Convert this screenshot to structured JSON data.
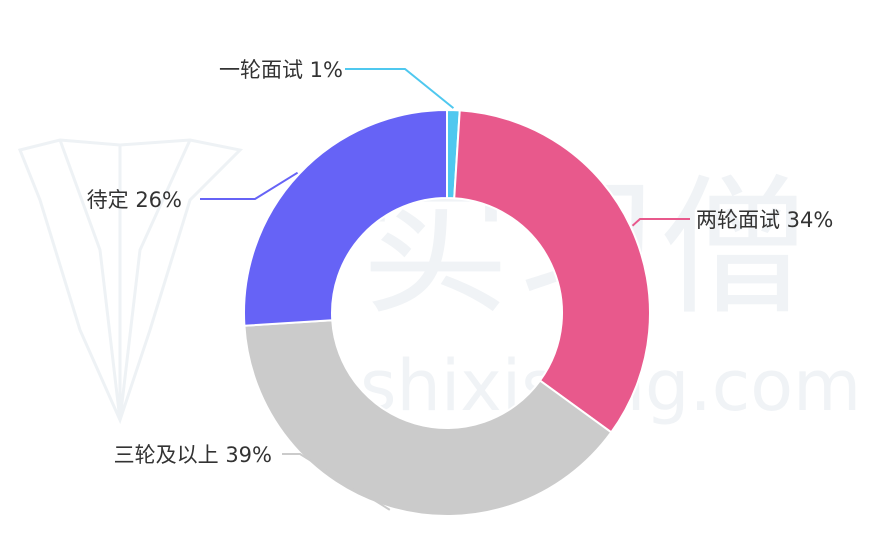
{
  "chart_data": {
    "type": "pie",
    "donut": true,
    "slices": [
      {
        "label": "一轮面试 1%",
        "value": 1,
        "color": "#4fc8ef"
      },
      {
        "label": "两轮面试 34%",
        "value": 34,
        "color": "#e8598c"
      },
      {
        "label": "三轮及以上 39%",
        "value": 39,
        "color": "#cbcbcb"
      },
      {
        "label": "待定 26%",
        "value": 26,
        "color": "#6663f6"
      }
    ]
  },
  "watermark": {
    "brand": "实习僧",
    "domain": "shixiseng.com"
  }
}
